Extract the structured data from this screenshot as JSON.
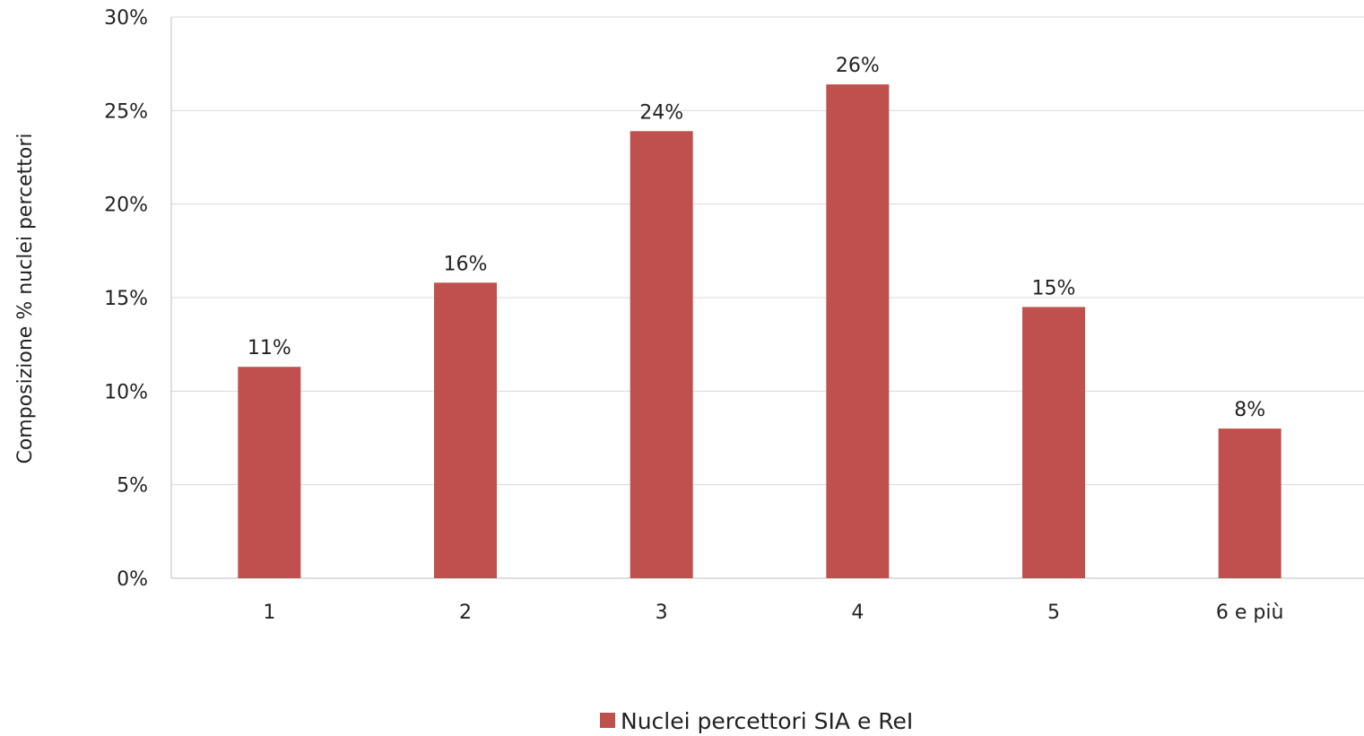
{
  "chart_data": {
    "type": "bar",
    "title": "",
    "xlabel": "",
    "ylabel": "Composizione % nuclei percettori",
    "categories": [
      "1",
      "2",
      "3",
      "4",
      "5",
      "6 e più"
    ],
    "series": [
      {
        "name": "Nuclei percettori SIA e ReI",
        "values": [
          11.3,
          15.8,
          23.9,
          26.4,
          14.5,
          8.0
        ],
        "data_labels": [
          "11%",
          "16%",
          "24%",
          "26%",
          "15%",
          "8%"
        ],
        "color": "#c0504d"
      }
    ],
    "ylim": [
      0,
      30
    ],
    "yticks": [
      0,
      5,
      10,
      15,
      20,
      25,
      30
    ],
    "ytick_labels": [
      "0%",
      "5%",
      "10%",
      "15%",
      "20%",
      "25%",
      "30%"
    ],
    "grid": true,
    "legend": "bottom-center",
    "colors": {
      "bar": "#c0504d",
      "grid": "#d9d9d9",
      "axis": "#bfbfbf"
    }
  }
}
